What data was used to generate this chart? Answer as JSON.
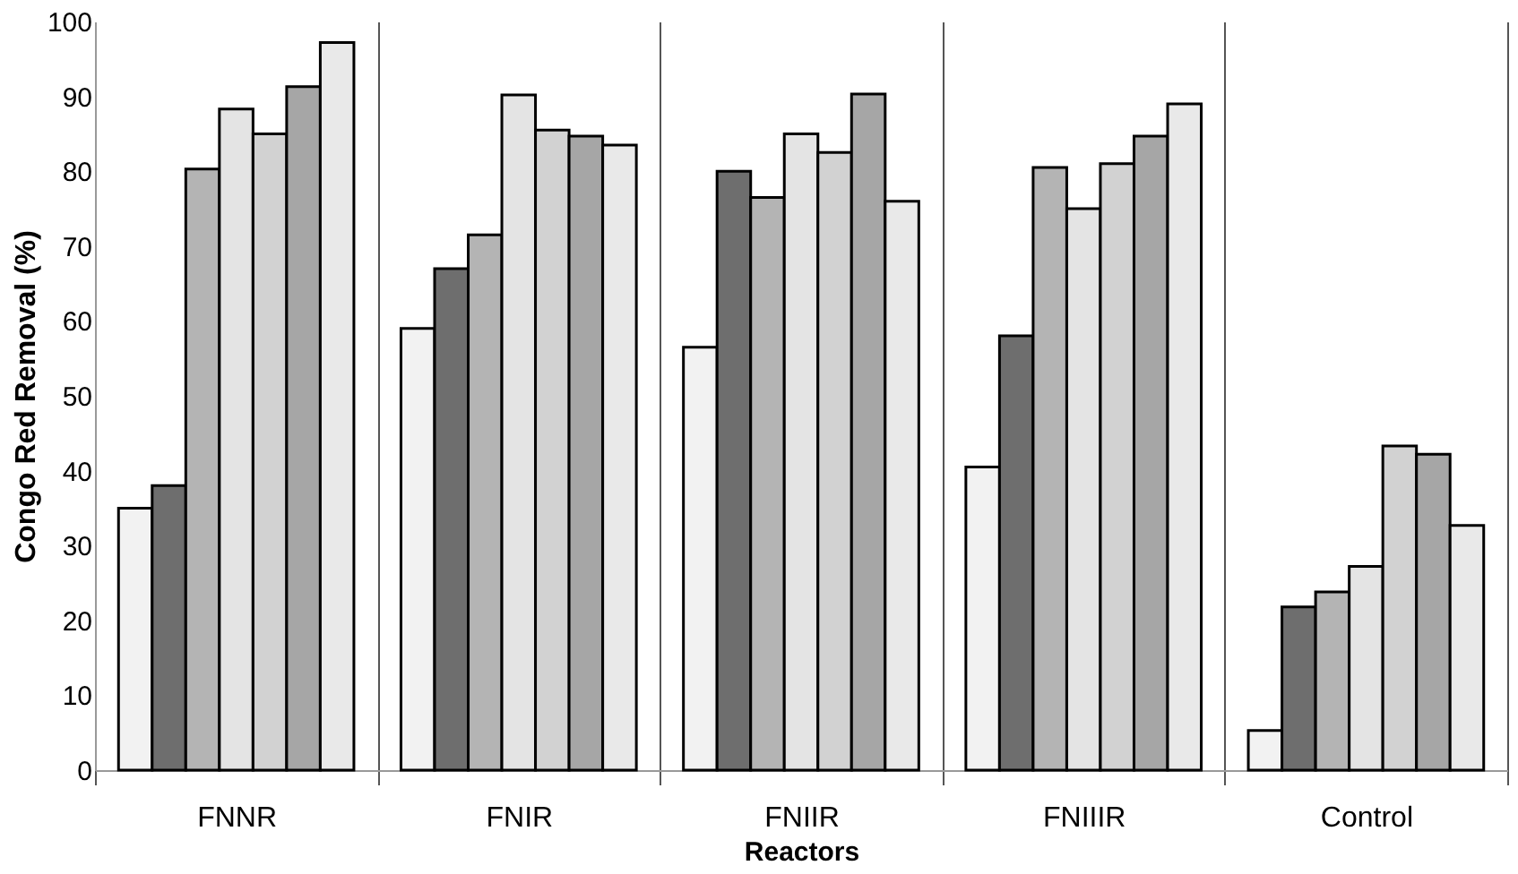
{
  "chart_data": {
    "type": "bar",
    "xlabel": "Reactors",
    "ylabel": "Congo Red Removal (%)",
    "categories": [
      "FNNR",
      "FNIR",
      "FNIIR",
      "FNIIIR",
      "Control"
    ],
    "series": [
      {
        "color": "#f2f2f2",
        "values": [
          35,
          59,
          56.5,
          40.5,
          5.3
        ]
      },
      {
        "color": "#6e6e6e",
        "values": [
          38,
          67,
          80,
          58,
          21.8
        ]
      },
      {
        "color": "#b4b4b4",
        "values": [
          80.3,
          71.5,
          76.5,
          80.5,
          23.8
        ]
      },
      {
        "color": "#e4e4e4",
        "values": [
          88.3,
          90.2,
          85,
          75,
          27.2
        ]
      },
      {
        "color": "#d2d2d2",
        "values": [
          85,
          85.5,
          82.5,
          81,
          43.3
        ]
      },
      {
        "color": "#a6a6a6",
        "values": [
          91.3,
          84.7,
          90.3,
          84.7,
          42.2
        ]
      },
      {
        "color": "#e9e9e9",
        "values": [
          97.2,
          83.5,
          76,
          89,
          32.7
        ]
      }
    ],
    "ylim": [
      0,
      100
    ],
    "yticks": [
      0,
      10,
      20,
      30,
      40,
      50,
      60,
      70,
      80,
      90,
      100
    ],
    "grid": "x"
  }
}
